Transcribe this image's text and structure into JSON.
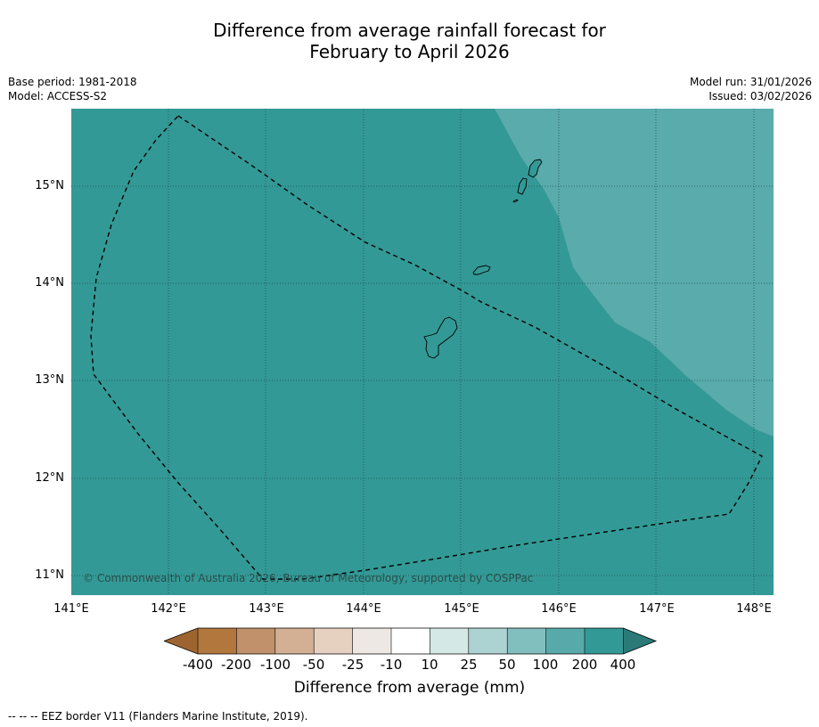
{
  "title": {
    "line1": "Difference from average rainfall forecast for",
    "line2": "February to April 2026"
  },
  "meta": {
    "base_period": "Base period: 1981-2018",
    "model": "Model: ACCESS-S2",
    "model_run": "Model run: 31/01/2026",
    "issued": "Issued: 03/02/2026"
  },
  "map": {
    "copyright": "© Commonwealth of Australia 2026, Bureau of Meteorology, supported by COSPPac",
    "lat_labels": [
      "15°N",
      "14°N",
      "13°N",
      "12°N",
      "11°N"
    ],
    "lon_labels": [
      "141°E",
      "142°E",
      "143°E",
      "144°E",
      "145°E",
      "146°E",
      "147°E",
      "148°E"
    ],
    "lat_values": [
      15,
      14,
      13,
      12,
      11
    ],
    "lon_values": [
      141,
      142,
      143,
      144,
      145,
      146,
      147,
      148
    ],
    "extent": {
      "lon_min": 141,
      "lon_max": 148.2,
      "lat_min": 10.8,
      "lat_max": 15.8
    },
    "main_category": "200 to 400 mm above average",
    "secondary_category": "100 to 200 mm above average",
    "colors": {
      "main": "#339996",
      "secondary": "#5aabab",
      "gridlines": "#1e4f4b",
      "eez": "#000000"
    }
  },
  "colorbar": {
    "title": "Difference from average (mm)",
    "ticks": [
      "-400",
      "-200",
      "-100",
      "-50",
      "-25",
      "-10",
      "10",
      "25",
      "50",
      "100",
      "200",
      "400"
    ],
    "colors": [
      "#9e6430",
      "#b1773d",
      "#c0916a",
      "#d3b094",
      "#e6d1c0",
      "#eee8e4",
      "#ffffff",
      "#d4e8e6",
      "#acd2d1",
      "#81bfbf",
      "#58aaaa",
      "#339996",
      "#2b7a78"
    ]
  },
  "footer": "--  --  -- EEZ border V11 (Flanders Marine Institute, 2019)."
}
